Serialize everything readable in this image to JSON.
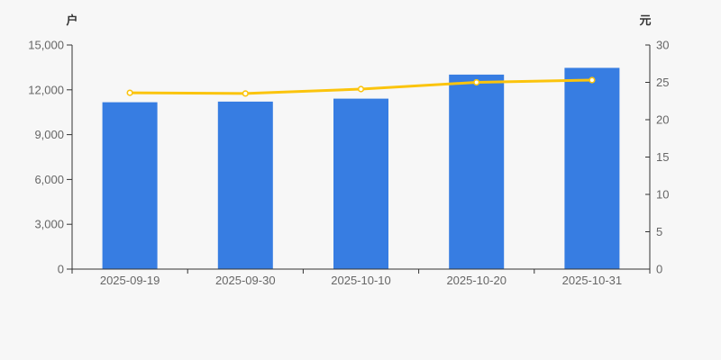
{
  "page": {
    "background": "#f7f7f7"
  },
  "style": {
    "axis_line_color": "#333333",
    "tick_label_color": "#666666",
    "axis_name_color": "#333333"
  },
  "chart_data": {
    "type": "combo-bar-line",
    "title": "",
    "legend": "none",
    "grid": "off",
    "categories": [
      "2025-09-19",
      "2025-09-30",
      "2025-10-10",
      "2025-10-20",
      "2025-10-31"
    ],
    "series": [
      {
        "type": "bar",
        "axis": "left",
        "color": "#377DE2",
        "values": [
          11170,
          11210,
          11410,
          13020,
          13470
        ]
      },
      {
        "type": "line",
        "axis": "right",
        "color": "#FBC40D",
        "marker": "circle-hollow",
        "marker_fill": "#ffffff",
        "values": [
          23.6,
          23.5,
          24.1,
          25.0,
          25.3
        ]
      }
    ],
    "axes": {
      "left": {
        "unit": "户",
        "min": 0,
        "max": 15000,
        "tick_step": 3000,
        "tick_labels": [
          "0",
          "3,000",
          "6,000",
          "9,000",
          "12,000",
          "15,000"
        ]
      },
      "right": {
        "unit": "元",
        "min": 0,
        "max": 30,
        "tick_step": 5,
        "tick_labels": [
          "0",
          "5",
          "10",
          "15",
          "20",
          "25",
          "30"
        ]
      },
      "x": {
        "tick_labels": [
          "2025-09-19",
          "2025-09-30",
          "2025-10-10",
          "2025-10-20",
          "2025-10-31"
        ]
      }
    }
  }
}
